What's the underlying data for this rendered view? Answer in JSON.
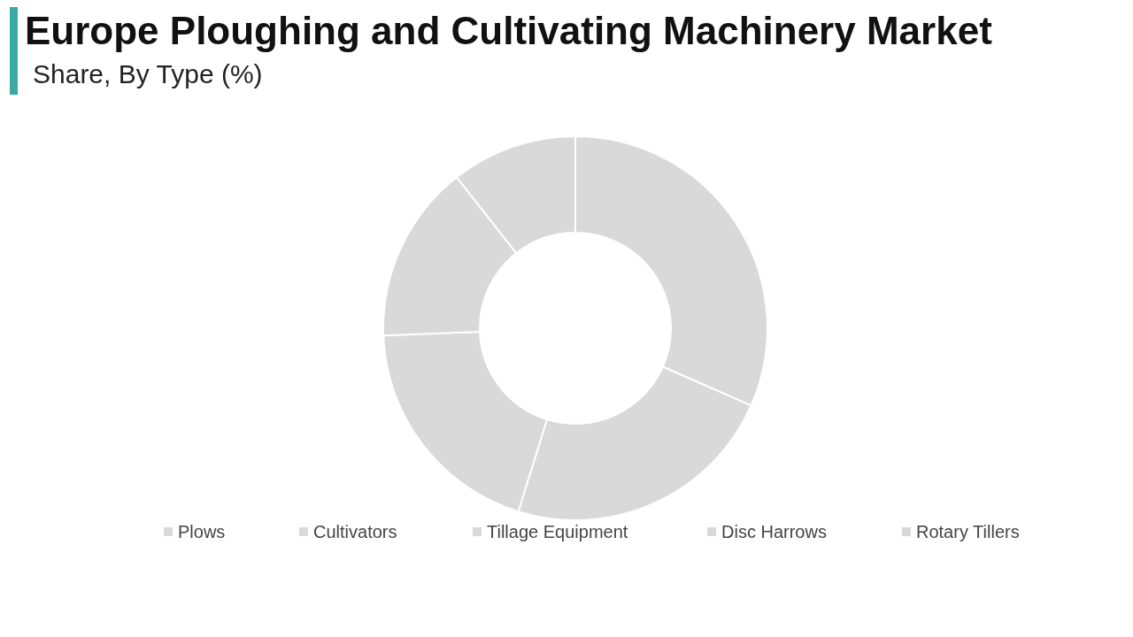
{
  "chart_data": {
    "type": "donut",
    "title": "Europe Ploughing and Cultivating Machinery Market",
    "subtitle": "Share, By Type (%)",
    "categories": [
      "Plows",
      "Cultivators",
      "Tillage Equipment",
      "Disc Harrows",
      "Rotary Tillers"
    ],
    "values": [
      31.6,
      23.2,
      19.6,
      15,
      10.6
    ],
    "colors": [
      "#d9d9d9",
      "#d9d9d9",
      "#d9d9d9",
      "#d9d9d9",
      "#d9d9d9"
    ],
    "legend": "bottom"
  }
}
